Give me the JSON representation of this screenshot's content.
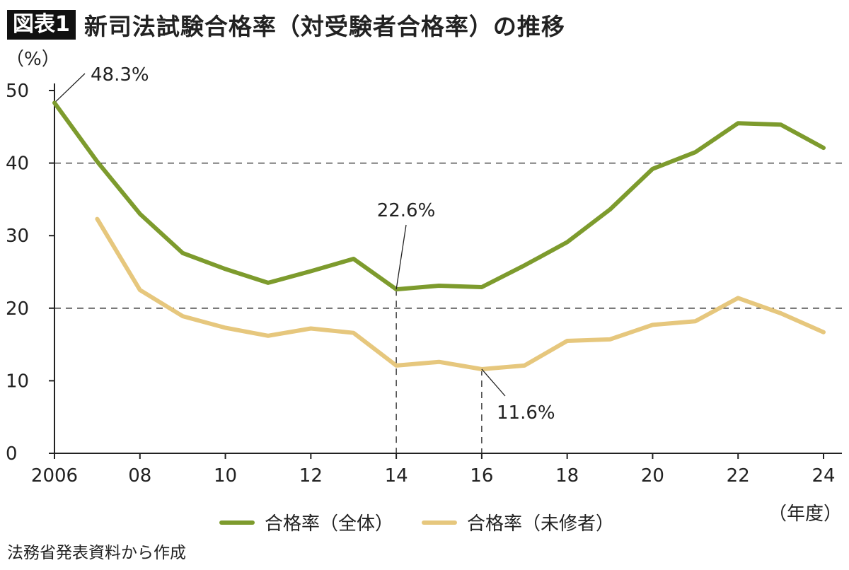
{
  "header": {
    "badge": "図表1",
    "title": "新司法試験合格率（対受験者合格率）の推移"
  },
  "colors": {
    "total": "#7d9b2d",
    "first_time": "#e6c77d",
    "axis": "#222222",
    "grid": "#222222"
  },
  "chart_data": {
    "type": "line",
    "title": "新司法試験合格率（対受験者合格率）の推移",
    "ylabel": "（%）",
    "xlabel": "（年度）",
    "ylim": [
      0,
      50
    ],
    "xlim": [
      2006,
      2024
    ],
    "yticks": [
      0,
      10,
      20,
      30,
      40,
      50
    ],
    "xticks": [
      {
        "value": 2006,
        "label": "2006"
      },
      {
        "value": 2008,
        "label": "08"
      },
      {
        "value": 2010,
        "label": "10"
      },
      {
        "value": 2012,
        "label": "12"
      },
      {
        "value": 2014,
        "label": "14"
      },
      {
        "value": 2016,
        "label": "16"
      },
      {
        "value": 2018,
        "label": "18"
      },
      {
        "value": 2020,
        "label": "20"
      },
      {
        "value": 2022,
        "label": "22"
      },
      {
        "value": 2024,
        "label": "24"
      }
    ],
    "dashed_gridlines": [
      20,
      40
    ],
    "series": [
      {
        "name": "合格率（全体）",
        "color": "#7d9b2d",
        "x": [
          2006,
          2007,
          2008,
          2009,
          2010,
          2011,
          2012,
          2013,
          2014,
          2015,
          2016,
          2017,
          2018,
          2019,
          2020,
          2021,
          2022,
          2023,
          2024
        ],
        "values": [
          48.3,
          40.2,
          33.0,
          27.6,
          25.4,
          23.5,
          25.1,
          26.8,
          22.6,
          23.1,
          22.9,
          25.9,
          29.1,
          33.6,
          39.2,
          41.5,
          45.5,
          45.3,
          42.1
        ]
      },
      {
        "name": "合格率（未修者）",
        "color": "#e6c77d",
        "x": [
          2007,
          2008,
          2009,
          2010,
          2011,
          2012,
          2013,
          2014,
          2015,
          2016,
          2017,
          2018,
          2019,
          2020,
          2021,
          2022,
          2023,
          2024
        ],
        "values": [
          32.3,
          22.5,
          18.9,
          17.3,
          16.2,
          17.2,
          16.6,
          12.1,
          12.6,
          11.6,
          12.1,
          15.5,
          15.7,
          17.7,
          18.2,
          21.4,
          19.3,
          16.7
        ]
      }
    ],
    "annotations": [
      {
        "text": "48.3%",
        "series": 0,
        "x": 2006,
        "y": 48.3
      },
      {
        "text": "22.6%",
        "series": 0,
        "x": 2014,
        "y": 22.6
      },
      {
        "text": "11.6%",
        "series": 1,
        "x": 2016,
        "y": 11.6
      }
    ]
  },
  "source": "法務省発表資料から作成"
}
